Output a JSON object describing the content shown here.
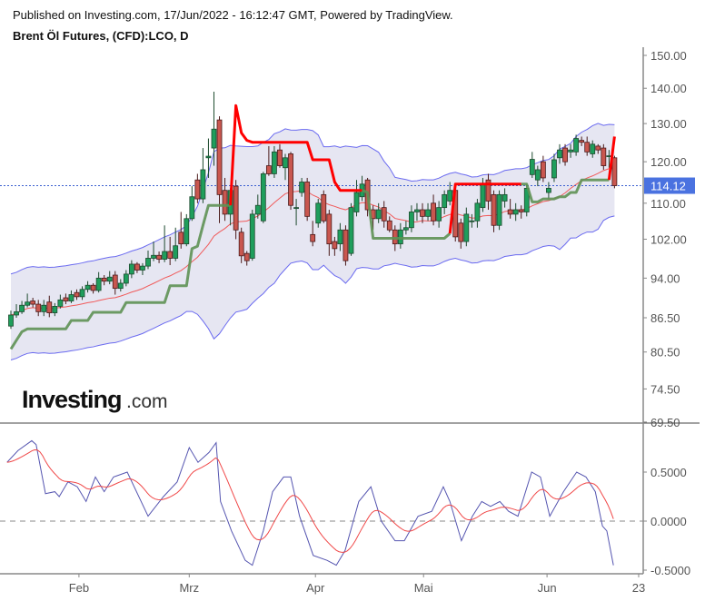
{
  "header": {
    "published": "Published on Investing.com, 17/Jun/2022 - 16:12:47 GMT, Powered by TradingView.",
    "title": "Brent Öl Futures, (CFD):LCO, D"
  },
  "watermark": {
    "brand": "Investing",
    "suffix": ".com"
  },
  "colors": {
    "candle_up": "#1f9e5c",
    "candle_down": "#c9574f",
    "bands": "#6a6af0",
    "band_fill": "#e6e6f2",
    "sma": "#f05a5a",
    "stop_up": "#5e9154",
    "stop_down": "#ff0000",
    "osc_main": "#5555b0",
    "osc_signal": "#f04848",
    "last_price_label": "#4a72e0"
  },
  "chart_data": [
    {
      "type": "candlestick",
      "title": "Brent Öl Futures, (CFD):LCO, D",
      "y_scale": "log",
      "ylim": [
        69.5,
        150
      ],
      "y_ticks": [
        "150.00",
        "140.00",
        "130.00",
        "120.00",
        "110.00",
        "102.00",
        "94.00",
        "86.50",
        "80.50",
        "74.50",
        "69.50"
      ],
      "x_ticks": [
        {
          "label": "Feb",
          "index": 12.4
        },
        {
          "label": "Mrz",
          "index": 32.5
        },
        {
          "label": "Apr",
          "index": 55.5
        },
        {
          "label": "Mai",
          "index": 75.2
        },
        {
          "label": "Jun",
          "index": 97.7
        },
        {
          "label": "23",
          "index": 114.4
        }
      ],
      "last_price": "114.12",
      "grid": false,
      "open": [
        85,
        87,
        87.6,
        88.8,
        89.6,
        89,
        87.6,
        89.4,
        87.4,
        88.6,
        90.2,
        89.6,
        91.2,
        90.4,
        91.8,
        92.6,
        91.6,
        94,
        93.4,
        94.6,
        92,
        93,
        94.8,
        96.8,
        95.6,
        96.4,
        98,
        98.6,
        97.8,
        99.4,
        98,
        103.5,
        101,
        106.5,
        115.5,
        111,
        121,
        123.5,
        131,
        113,
        107.5,
        114,
        103.5,
        99,
        98,
        107.5,
        106,
        119,
        117,
        123,
        118.5,
        122,
        109,
        112.5,
        115,
        103,
        105.5,
        112,
        107.5,
        101.5,
        101,
        104,
        99,
        108,
        111.5,
        115.5,
        108.5,
        106.5,
        109,
        106,
        104,
        101,
        104,
        104.5,
        108,
        108.5,
        107,
        110,
        106,
        109,
        110.5,
        113,
        105.5,
        101.5,
        106,
        106,
        109,
        115.5,
        112,
        105,
        110.5,
        108.5,
        107.5,
        108.5,
        108,
        116.8,
        115.5,
        120,
        112.5,
        116,
        121,
        123.5,
        122.5,
        122.5,
        125.5,
        125,
        122,
        124,
        123.5,
        121.5,
        121
      ],
      "high": [
        87.8,
        89,
        89.6,
        91,
        90.2,
        89.8,
        89.8,
        90.6,
        89.2,
        90.8,
        91,
        91.6,
        91.8,
        92.4,
        93.4,
        93,
        95.2,
        94.6,
        95.4,
        95.4,
        93.8,
        95.6,
        97.6,
        97.2,
        97,
        99.6,
        101.5,
        99.4,
        105,
        102.5,
        104.5,
        108,
        107.5,
        114,
        117,
        123.5,
        126,
        139,
        132,
        116,
        113.5,
        115.5,
        104.5,
        99.5,
        108.5,
        112,
        117.5,
        124,
        124,
        124.5,
        122,
        122.5,
        111,
        116,
        116,
        106,
        111,
        113,
        108.5,
        102.5,
        105.5,
        105,
        110,
        115.5,
        116.5,
        116,
        109.5,
        110,
        110.5,
        107,
        105,
        105.5,
        106,
        109.5,
        110,
        110,
        110,
        112,
        110.5,
        113,
        115,
        113.5,
        106.5,
        109,
        107.5,
        111,
        116,
        117,
        113,
        113,
        113.5,
        111,
        110,
        109.5,
        114.5,
        122.5,
        119,
        121.5,
        115,
        122,
        124.5,
        124.5,
        124.5,
        127,
        126.5,
        126.5,
        125.5,
        124.5,
        124.5,
        123,
        121.5
      ],
      "low": [
        84.5,
        86.5,
        87.2,
        88.4,
        88.4,
        86.8,
        86.8,
        86.6,
        86.8,
        88.2,
        89,
        89.2,
        89.8,
        89.8,
        91.2,
        91,
        91.2,
        92.6,
        92.8,
        90.8,
        91.4,
        92.4,
        94,
        95,
        94.6,
        95.8,
        97.4,
        97,
        97.2,
        96.6,
        97.4,
        100,
        100.5,
        106,
        110,
        110,
        116,
        119,
        105.5,
        106,
        105,
        102,
        97,
        96.5,
        97.5,
        106.5,
        105.5,
        116.5,
        116,
        118.5,
        115.5,
        108.5,
        105,
        111.5,
        106,
        100.5,
        104.5,
        105.5,
        98.5,
        98.5,
        99.5,
        96.5,
        98.5,
        107,
        110.5,
        107,
        104,
        105.5,
        104.5,
        103.5,
        99.5,
        100,
        103,
        103.5,
        106,
        105.5,
        106,
        105,
        104.5,
        107.5,
        109.5,
        101.5,
        100,
        100.5,
        104.5,
        104.5,
        108,
        108.5,
        103.5,
        104,
        109,
        106.5,
        106,
        106.5,
        107,
        116,
        114,
        115,
        111,
        115,
        119.5,
        119,
        121,
        121.5,
        124,
        121.5,
        121,
        122,
        118,
        118.5,
        113.5
      ],
      "close": [
        87,
        87.6,
        88.8,
        89.4,
        89,
        87.6,
        88.8,
        87.4,
        88.6,
        89.8,
        89.6,
        90.8,
        90.4,
        91.8,
        92.6,
        91.6,
        94,
        93.4,
        94.2,
        92,
        93,
        94.8,
        96.8,
        95.6,
        96.4,
        98,
        98.6,
        97.8,
        99.4,
        98,
        100.6,
        101,
        106.5,
        111.5,
        111,
        118,
        121.4,
        128.5,
        112,
        107.5,
        113,
        104,
        98.5,
        97.5,
        107.5,
        109.5,
        117,
        117,
        122.5,
        119,
        121,
        109.5,
        109,
        115,
        107,
        101.5,
        110,
        106,
        101,
        100,
        104,
        97.5,
        109,
        112.5,
        114.5,
        108.5,
        106.5,
        108.5,
        106,
        104,
        101,
        104,
        104.5,
        108,
        108.5,
        107,
        108.5,
        106,
        109,
        112,
        113,
        102.5,
        101.5,
        107.5,
        106,
        110,
        114.5,
        110.5,
        105,
        112,
        112,
        107.5,
        108.5,
        108,
        113.5,
        120.6,
        118,
        116,
        113.5,
        120.5,
        123,
        120,
        123,
        126,
        125,
        122.5,
        124.5,
        123,
        119,
        121.5,
        114.12
      ],
      "trailing_stop": [
        81,
        82.5,
        84,
        84.5,
        84.5,
        84.5,
        84.5,
        84.5,
        84.5,
        84.5,
        84.5,
        86,
        86,
        86,
        86,
        87.5,
        87.5,
        87.5,
        87.5,
        87.5,
        87.5,
        89.3,
        89.3,
        89.3,
        89.3,
        89.3,
        89.3,
        89.3,
        89.3,
        92.5,
        92.5,
        92.5,
        92.5,
        100,
        100.5,
        105,
        109.5,
        109.5,
        109.5,
        109.5,
        109.5,
        135,
        127.5,
        125.5,
        125,
        125,
        125,
        125,
        125,
        125,
        125,
        125,
        125,
        125,
        125,
        120.5,
        120.5,
        120.5,
        120.5,
        115,
        113,
        113,
        113,
        113,
        113,
        112.5,
        102.2,
        102.2,
        102.2,
        102.2,
        102.2,
        102.2,
        102.2,
        102.2,
        102.2,
        102.2,
        102.2,
        102.2,
        102.2,
        102.2,
        103.2,
        114.5,
        114.5,
        114.5,
        114.5,
        114.5,
        114.5,
        114.5,
        114.5,
        114.5,
        114.5,
        114.5,
        114.5,
        114.5,
        114.5,
        110.3,
        110.3,
        111,
        111,
        111,
        111.5,
        111.5,
        112.5,
        112.5,
        115.5,
        115.5,
        115.5,
        115.5,
        115.5,
        115.5,
        126.5
      ],
      "trailing_stop_trend": [
        {
          "trend": "up",
          "from": 0,
          "to": 40
        },
        {
          "trend": "down",
          "from": 41,
          "to": 64
        },
        {
          "trend": "up",
          "from": 65,
          "to": 80
        },
        {
          "trend": "down",
          "from": 81,
          "to": 93
        },
        {
          "trend": "up",
          "from": 94,
          "to": 109
        },
        {
          "trend": "down",
          "from": 110,
          "to": 110
        }
      ]
    },
    {
      "type": "line",
      "ylim": [
        -0.55,
        0.9
      ],
      "y_ticks": [
        "0.5000",
        "0.0000",
        "-0.5000"
      ],
      "zero_line": "dashed",
      "series": [
        {
          "points": [
            [
              -0.7,
              0.6
            ],
            [
              1.3,
              0.72
            ],
            [
              3.8,
              0.82
            ],
            [
              4.6,
              0.78
            ],
            [
              6.3,
              0.28
            ],
            [
              8,
              0.3
            ],
            [
              8.8,
              0.25
            ],
            [
              10.4,
              0.4
            ],
            [
              12.1,
              0.35
            ],
            [
              13.7,
              0.2
            ],
            [
              15.4,
              0.45
            ],
            [
              17,
              0.3
            ],
            [
              18.7,
              0.45
            ],
            [
              21.2,
              0.5
            ],
            [
              25,
              0.05
            ],
            [
              27.8,
              0.25
            ],
            [
              30.3,
              0.4
            ],
            [
              32.5,
              0.75
            ],
            [
              34.1,
              0.6
            ],
            [
              36.1,
              0.7
            ],
            [
              37.4,
              0.8
            ],
            [
              38.2,
              0.2
            ],
            [
              40.2,
              -0.1
            ],
            [
              42.7,
              -0.4
            ],
            [
              44,
              -0.45
            ],
            [
              46,
              -0.1
            ],
            [
              47.7,
              0.3
            ],
            [
              49.7,
              0.45
            ],
            [
              51,
              0.45
            ],
            [
              52.6,
              0.05
            ],
            [
              55.1,
              -0.35
            ],
            [
              57.6,
              -0.4
            ],
            [
              59.3,
              -0.45
            ],
            [
              60.9,
              -0.3
            ],
            [
              63.4,
              0.2
            ],
            [
              65.6,
              0.35
            ],
            [
              67.5,
              0
            ],
            [
              70,
              -0.2
            ],
            [
              71.7,
              -0.2
            ],
            [
              74.2,
              0.05
            ],
            [
              76.7,
              0.1
            ],
            [
              78.8,
              0.35
            ],
            [
              80,
              0.2
            ],
            [
              82.1,
              -0.2
            ],
            [
              84.1,
              0.05
            ],
            [
              85.8,
              0.2
            ],
            [
              87.4,
              0.15
            ],
            [
              89.1,
              0.2
            ],
            [
              90.7,
              0.1
            ],
            [
              92.4,
              0.05
            ],
            [
              94.9,
              0.5
            ],
            [
              96.5,
              0.45
            ],
            [
              98.2,
              0.05
            ],
            [
              100.7,
              0.3
            ],
            [
              103.1,
              0.5
            ],
            [
              104.8,
              0.45
            ],
            [
              106.5,
              0.3
            ],
            [
              107.8,
              -0.05
            ],
            [
              108.6,
              -0.1
            ],
            [
              109.8,
              -0.45
            ]
          ]
        }
      ]
    }
  ]
}
